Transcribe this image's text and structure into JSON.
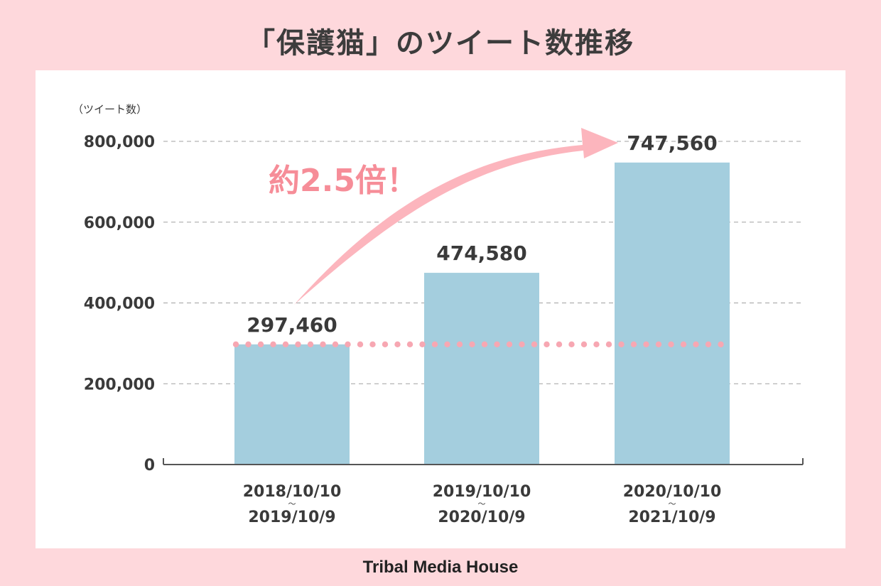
{
  "chart_data": {
    "type": "bar",
    "title": "「保護猫」のツイート数推移",
    "ylabel": "（ツイート数）",
    "ylim": [
      0,
      800000
    ],
    "yticks": [
      0,
      200000,
      400000,
      600000,
      800000
    ],
    "ytick_labels": [
      "0",
      "200,000",
      "400,000",
      "600,000",
      "800,000"
    ],
    "grid": true,
    "categories": [
      {
        "line1": "2018/10/10",
        "sep": "〜",
        "line2": "2019/10/9"
      },
      {
        "line1": "2019/10/10",
        "sep": "〜",
        "line2": "2020/10/9"
      },
      {
        "line1": "2020/10/10",
        "sep": "〜",
        "line2": "2021/10/9"
      }
    ],
    "values": [
      297460,
      474580,
      747560
    ],
    "value_labels": [
      "297,460",
      "474,580",
      "747,560"
    ],
    "reference_line_value": 297460,
    "annotation": "約2.5倍！",
    "colors": {
      "bar": "#a4cede",
      "axis": "#555555",
      "grid": "#a0a0a0",
      "dots": "#f7a7b2",
      "arrow": "#fcb5bd",
      "annotation": "#f68d98",
      "text": "#3a3a3a"
    }
  },
  "footer": {
    "brand": "Tribal Media House"
  }
}
